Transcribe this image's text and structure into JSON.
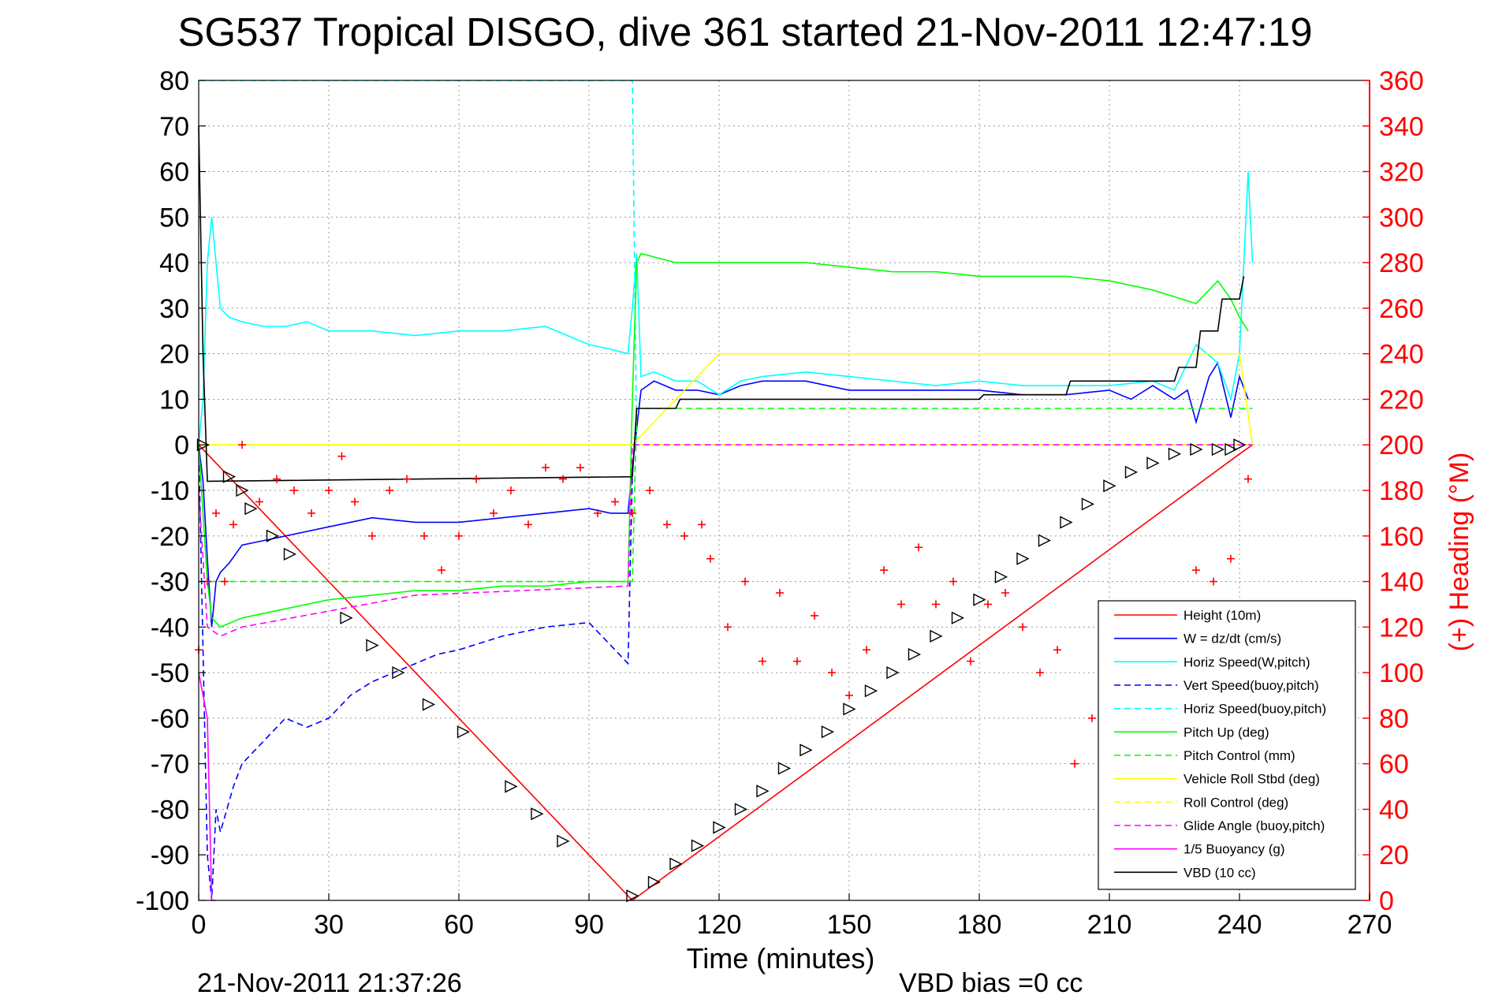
{
  "figure": {
    "title": "SG537 Tropical DISGO, dive 361 started 21-Nov-2011 12:47:19",
    "footer_timestamp": "21-Nov-2011 21:37:26",
    "footer_note": "VBD bias =0 cc"
  },
  "colors": {
    "height": "#ff0000",
    "w": "#0000ff",
    "horiz": "#00ffff",
    "pitch": "#00ff00",
    "roll": "#ffff00",
    "glide": "#ff00ff",
    "vbd": "#000000",
    "heading": "#ff0000",
    "right_axis": "#ff0000"
  },
  "chart_data": {
    "type": "line",
    "title": "SG537 Tropical DISGO, dive 361 started 21-Nov-2011 12:47:19",
    "xlabel": "Time (minutes)",
    "ylabel": "",
    "ylabel_right": "(+) Heading (°M)",
    "xlim": [
      0,
      270
    ],
    "ylim": [
      -100,
      80
    ],
    "ylim_right": [
      0,
      360
    ],
    "x_ticks": [
      "0",
      "30",
      "60",
      "90",
      "120",
      "150",
      "180",
      "210",
      "240",
      "270"
    ],
    "y_ticks": [
      "80",
      "70",
      "60",
      "50",
      "40",
      "30",
      "20",
      "10",
      "0",
      "-10",
      "-20",
      "-30",
      "-40",
      "-50",
      "-60",
      "-70",
      "-80",
      "-90",
      "-100"
    ],
    "y_ticks_right": [
      "360",
      "340",
      "320",
      "300",
      "280",
      "260",
      "240",
      "220",
      "200",
      "180",
      "160",
      "140",
      "120",
      "100",
      "80",
      "60",
      "40",
      "20",
      "0"
    ],
    "grid": true,
    "legend_position": "bottom-right",
    "legend": [
      {
        "label": "Height (10m)",
        "color": "#ff0000",
        "dash": false
      },
      {
        "label": "W = dz/dt (cm/s)",
        "color": "#0000ff",
        "dash": false
      },
      {
        "label": "Horiz Speed(W,pitch)",
        "color": "#00ffff",
        "dash": false
      },
      {
        "label": "Vert Speed(buoy,pitch)",
        "color": "#0000ff",
        "dash": true
      },
      {
        "label": "Horiz Speed(buoy,pitch)",
        "color": "#00ffff",
        "dash": true
      },
      {
        "label": "Pitch Up (deg)",
        "color": "#00ff00",
        "dash": false
      },
      {
        "label": "Pitch Control (mm)",
        "color": "#00ff00",
        "dash": true
      },
      {
        "label": "Vehicle Roll Stbd (deg)",
        "color": "#ffff00",
        "dash": false
      },
      {
        "label": "Roll Control (deg)",
        "color": "#ffff00",
        "dash": true
      },
      {
        "label": "Glide Angle (buoy,pitch)",
        "color": "#ff00ff",
        "dash": true
      },
      {
        "label": "1/5 Buoyancy (g)",
        "color": "#ff00ff",
        "dash": false
      },
      {
        "label": "VBD (10 cc)",
        "color": "#000000",
        "dash": false
      }
    ],
    "series": [
      {
        "name": "Height (10m)",
        "x": [
          0,
          2,
          100,
          240,
          243
        ],
        "y": [
          0,
          -2,
          -100,
          -2,
          0
        ]
      },
      {
        "name": "W = dz/dt (cm/s)",
        "x": [
          0,
          1,
          2,
          3,
          4,
          5,
          7,
          10,
          15,
          20,
          30,
          40,
          50,
          60,
          70,
          80,
          90,
          95,
          99,
          100,
          102,
          105,
          110,
          115,
          120,
          125,
          130,
          140,
          150,
          160,
          170,
          180,
          190,
          200,
          210,
          215,
          220,
          225,
          228,
          230,
          233,
          235,
          238,
          240,
          242
        ],
        "y": [
          0,
          -8,
          -25,
          -40,
          -30,
          -28,
          -26,
          -22,
          -21,
          -20,
          -18,
          -16,
          -17,
          -17,
          -16,
          -15,
          -14,
          -15,
          -15,
          -5,
          12,
          14,
          12,
          12,
          11,
          13,
          14,
          14,
          12,
          12,
          12,
          12,
          11,
          11,
          12,
          10,
          13,
          10,
          12,
          5,
          15,
          18,
          6,
          15,
          10
        ]
      },
      {
        "name": "Horiz Speed(W,pitch)",
        "x": [
          0,
          1,
          2,
          3,
          4,
          5,
          7,
          10,
          15,
          20,
          25,
          30,
          40,
          50,
          60,
          70,
          80,
          90,
          95,
          99,
          100,
          101,
          102,
          105,
          110,
          115,
          120,
          125,
          130,
          140,
          150,
          160,
          170,
          180,
          190,
          200,
          210,
          220,
          225,
          230,
          235,
          238,
          240,
          242,
          243
        ],
        "y": [
          0,
          10,
          40,
          50,
          40,
          30,
          28,
          27,
          26,
          26,
          27,
          25,
          25,
          24,
          25,
          25,
          26,
          22,
          21,
          20,
          30,
          42,
          15,
          16,
          14,
          14,
          11,
          14,
          15,
          16,
          15,
          14,
          13,
          14,
          13,
          13,
          13,
          14,
          12,
          22,
          18,
          10,
          20,
          60,
          40
        ]
      },
      {
        "name": "Vert Speed(buoy,pitch)",
        "x": [
          0,
          2,
          3,
          4,
          5,
          8,
          10,
          15,
          20,
          25,
          30,
          35,
          40,
          45,
          50,
          55,
          60,
          70,
          80,
          90,
          99,
          100
        ],
        "y": [
          0,
          -90,
          -100,
          -80,
          -85,
          -75,
          -70,
          -65,
          -60,
          -62,
          -60,
          -55,
          -52,
          -50,
          -48,
          -46,
          -45,
          -42,
          -40,
          -39,
          -48,
          -7
        ]
      },
      {
        "name": "Horiz Speed(buoy,pitch)",
        "x": [
          0,
          99,
          100,
          101
        ],
        "y": [
          80,
          80,
          80,
          0
        ]
      },
      {
        "name": "Pitch Up (deg)",
        "x": [
          0,
          2,
          3,
          5,
          10,
          20,
          30,
          40,
          50,
          60,
          70,
          80,
          90,
          99,
          100,
          101,
          102,
          110,
          120,
          130,
          140,
          150,
          160,
          170,
          180,
          190,
          200,
          210,
          220,
          230,
          235,
          238,
          240,
          242
        ],
        "y": [
          0,
          -30,
          -38,
          -40,
          -38,
          -36,
          -34,
          -33,
          -32,
          -32,
          -31,
          -31,
          -30,
          -30,
          10,
          40,
          42,
          40,
          40,
          40,
          40,
          39,
          38,
          38,
          37,
          37,
          37,
          36,
          34,
          31,
          36,
          32,
          28,
          25
        ]
      },
      {
        "name": "Pitch Control (mm)",
        "x": [
          0,
          100,
          101,
          243
        ],
        "y": [
          -30,
          -30,
          8,
          8
        ]
      },
      {
        "name": "Vehicle Roll Stbd (deg)",
        "x": [
          0,
          20,
          40,
          60,
          80,
          100,
          120,
          140,
          160,
          180,
          200,
          220,
          240,
          243
        ],
        "y": [
          0,
          0,
          0,
          0,
          0,
          0,
          20,
          20,
          20,
          20,
          20,
          20,
          20,
          0
        ]
      },
      {
        "name": "Roll Control (deg)",
        "x": [
          0,
          100,
          101,
          243
        ],
        "y": [
          0,
          0,
          0,
          0
        ]
      },
      {
        "name": "Glide Angle (buoy,pitch)",
        "x": [
          0,
          2,
          5,
          10,
          50,
          99,
          100,
          243
        ],
        "y": [
          -10,
          -40,
          -42,
          -40,
          -33,
          -31,
          0,
          0
        ]
      },
      {
        "name": "1/5 Buoyancy (g)",
        "x": [
          0,
          2,
          3,
          4
        ],
        "y": [
          -50,
          -60,
          -100,
          -100
        ]
      },
      {
        "name": "VBD (10 cc)",
        "x": [
          0,
          1,
          2,
          100,
          101,
          110,
          111,
          180,
          181,
          200,
          201,
          225,
          226,
          230,
          231,
          235,
          236,
          240,
          241
        ],
        "y": [
          70,
          20,
          -8,
          -7,
          8,
          8,
          10,
          10,
          11,
          11,
          14,
          14,
          17,
          17,
          25,
          25,
          32,
          32,
          37
        ]
      }
    ],
    "heading": {
      "name": "(+) Heading (°M)",
      "x": [
        0,
        2,
        4,
        6,
        8,
        10,
        14,
        18,
        22,
        26,
        30,
        33,
        36,
        40,
        44,
        48,
        52,
        56,
        60,
        64,
        68,
        72,
        76,
        80,
        84,
        88,
        92,
        96,
        100,
        104,
        108,
        112,
        116,
        118,
        122,
        126,
        130,
        134,
        138,
        142,
        146,
        150,
        154,
        158,
        162,
        166,
        170,
        174,
        178,
        182,
        186,
        190,
        194,
        198,
        202,
        206,
        210,
        214,
        218,
        222,
        226,
        230,
        234,
        238,
        242
      ],
      "y": [
        110,
        140,
        170,
        140,
        165,
        200,
        175,
        185,
        180,
        170,
        180,
        195,
        175,
        160,
        180,
        185,
        160,
        145,
        160,
        185,
        170,
        180,
        165,
        190,
        185,
        190,
        170,
        175,
        170,
        180,
        165,
        160,
        165,
        150,
        120,
        140,
        105,
        135,
        105,
        125,
        100,
        90,
        110,
        145,
        130,
        155,
        130,
        140,
        105,
        130,
        135,
        120,
        100,
        110,
        60,
        80,
        50,
        45,
        35,
        55,
        40,
        145,
        140,
        150,
        185
      ]
    },
    "markers": {
      "symbol": "triangle",
      "x": [
        1,
        7,
        10,
        12,
        17,
        21,
        34,
        40,
        46,
        53,
        61,
        72,
        78,
        84,
        100,
        105,
        110,
        115,
        120,
        125,
        130,
        135,
        140,
        145,
        150,
        155,
        160,
        165,
        170,
        175,
        180,
        185,
        190,
        195,
        200,
        205,
        210,
        215,
        220,
        225,
        230,
        235,
        238,
        240
      ],
      "y": [
        0,
        -7,
        -10,
        -14,
        -20,
        -24,
        -38,
        -44,
        -50,
        -57,
        -63,
        -75,
        -81,
        -87,
        -99,
        -96,
        -92,
        -88,
        -84,
        -80,
        -76,
        -71,
        -67,
        -63,
        -58,
        -54,
        -50,
        -46,
        -42,
        -38,
        -34,
        -29,
        -25,
        -21,
        -17,
        -13,
        -9,
        -6,
        -4,
        -2,
        -1,
        -1,
        -1,
        0
      ]
    }
  }
}
